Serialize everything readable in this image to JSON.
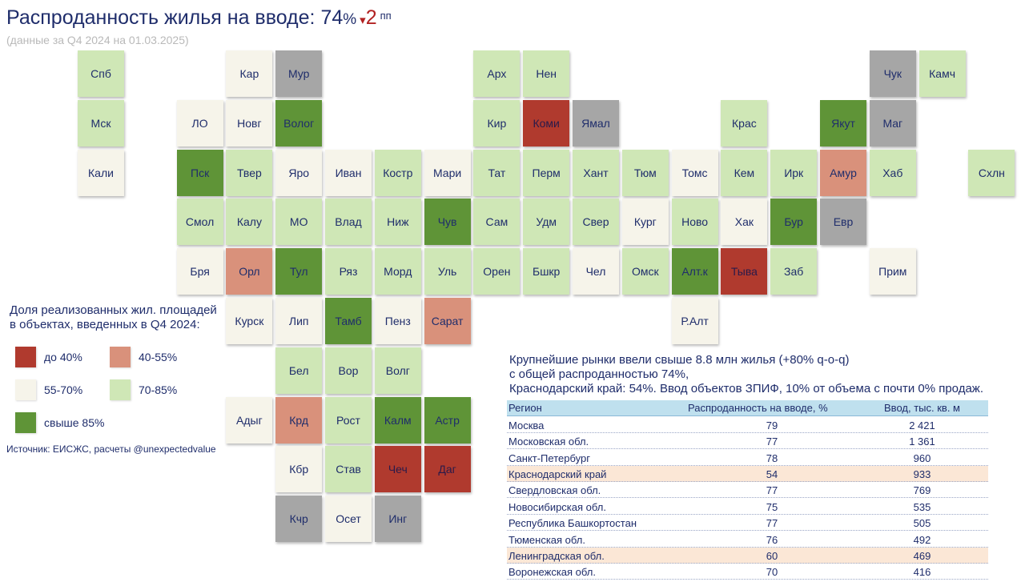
{
  "header": {
    "title_prefix": "Распроданность жилья на вводе: ",
    "title_value": "74",
    "title_value_suffix": "%",
    "change_arrow": "▾",
    "change_value": "2",
    "change_unit": "пп",
    "subtitle": "(данные за Q4 2024 на 01.03.2025)"
  },
  "colors": {
    "red": "#b03a2e",
    "salmon": "#d9917b",
    "cream": "#f6f4ea",
    "light_green": "#cfe7b6",
    "dark_green": "#5f9437",
    "grey": "#a6a6a6"
  },
  "legend": {
    "title_line1": "Доля реализованных жил. площадей",
    "title_line2": "в объектах, введенных в Q4 2024:",
    "items": [
      {
        "label": "до 40%",
        "color": "#b03a2e"
      },
      {
        "label": "40-55%",
        "color": "#d9917b"
      },
      {
        "label": "55-70%",
        "color": "#f6f4ea"
      },
      {
        "label": "70-85%",
        "color": "#cfe7b6"
      },
      {
        "label": "свыше 85%",
        "color": "#5f9437"
      }
    ]
  },
  "source": "Источник: ЕИСЖС, расчеты @unexpectedvalue",
  "note": {
    "line1": "Крупнейшие рынки ввели свыше 8.8 млн жилья (+80% q-o-q)",
    "line2": "с общей распроданностью 74%,",
    "line3": "Краснодарский край: 54%. Ввод объектов ЗПИФ, 10% от объема с почти 0% продаж."
  },
  "table": {
    "headers": [
      "Регион",
      "Распроданность на вводе, %",
      "Ввод, тыс. кв. м"
    ],
    "rows": [
      {
        "region": "Москва",
        "sold": "79",
        "area": "2 421",
        "highlight": false
      },
      {
        "region": "Московская обл.",
        "sold": "77",
        "area": "1 361",
        "highlight": false
      },
      {
        "region": "Санкт-Петербург",
        "sold": "78",
        "area": "960",
        "highlight": false
      },
      {
        "region": "Краснодарский край",
        "sold": "54",
        "area": "933",
        "highlight": true
      },
      {
        "region": "Свердловская обл.",
        "sold": "77",
        "area": "769",
        "highlight": false
      },
      {
        "region": "Новосибирская обл.",
        "sold": "75",
        "area": "535",
        "highlight": false
      },
      {
        "region": "Республика Башкортостан",
        "sold": "77",
        "area": "505",
        "highlight": false
      },
      {
        "region": "Тюменская обл.",
        "sold": "76",
        "area": "492",
        "highlight": false
      },
      {
        "region": "Ленинградская обл.",
        "sold": "60",
        "area": "469",
        "highlight": true
      },
      {
        "region": "Воронежская обл.",
        "sold": "70",
        "area": "416",
        "highlight": false
      }
    ]
  },
  "chart_data": {
    "type": "heatmap",
    "title": "Распроданность жилья на вводе: 74%",
    "bins": [
      "до 40%",
      "40-55%",
      "55-70%",
      "70-85%",
      "свыше 85%"
    ],
    "regions": [
      {
        "label": "Спб",
        "col": 0,
        "row": 0,
        "category": "light_green"
      },
      {
        "label": "Мск",
        "col": 0,
        "row": 1,
        "category": "light_green"
      },
      {
        "label": "Кали",
        "col": 0,
        "row": 2,
        "category": "cream"
      },
      {
        "label": "Кар",
        "col": 3,
        "row": 0,
        "category": "cream"
      },
      {
        "label": "Мур",
        "col": 4,
        "row": 0,
        "category": "grey"
      },
      {
        "label": "Арх",
        "col": 8,
        "row": 0,
        "category": "light_green"
      },
      {
        "label": "Нен",
        "col": 9,
        "row": 0,
        "category": "light_green"
      },
      {
        "label": "Чук",
        "col": 16,
        "row": 0,
        "category": "grey"
      },
      {
        "label": "Камч",
        "col": 17,
        "row": 0,
        "category": "light_green"
      },
      {
        "label": "ЛО",
        "col": 2,
        "row": 1,
        "category": "cream"
      },
      {
        "label": "Новг",
        "col": 3,
        "row": 1,
        "category": "cream"
      },
      {
        "label": "Волог",
        "col": 4,
        "row": 1,
        "category": "dark_green"
      },
      {
        "label": "Кир",
        "col": 8,
        "row": 1,
        "category": "light_green"
      },
      {
        "label": "Коми",
        "col": 9,
        "row": 1,
        "category": "red"
      },
      {
        "label": "Ямал",
        "col": 10,
        "row": 1,
        "category": "grey"
      },
      {
        "label": "Крас",
        "col": 13,
        "row": 1,
        "category": "light_green"
      },
      {
        "label": "Якут",
        "col": 15,
        "row": 1,
        "category": "dark_green"
      },
      {
        "label": "Маг",
        "col": 16,
        "row": 1,
        "category": "grey"
      },
      {
        "label": "Пск",
        "col": 2,
        "row": 2,
        "category": "dark_green"
      },
      {
        "label": "Твер",
        "col": 3,
        "row": 2,
        "category": "light_green"
      },
      {
        "label": "Яро",
        "col": 4,
        "row": 2,
        "category": "cream"
      },
      {
        "label": "Иван",
        "col": 5,
        "row": 2,
        "category": "cream"
      },
      {
        "label": "Костр",
        "col": 6,
        "row": 2,
        "category": "light_green"
      },
      {
        "label": "Мари",
        "col": 7,
        "row": 2,
        "category": "cream"
      },
      {
        "label": "Тат",
        "col": 8,
        "row": 2,
        "category": "light_green"
      },
      {
        "label": "Перм",
        "col": 9,
        "row": 2,
        "category": "light_green"
      },
      {
        "label": "Хант",
        "col": 10,
        "row": 2,
        "category": "light_green"
      },
      {
        "label": "Тюм",
        "col": 11,
        "row": 2,
        "category": "light_green"
      },
      {
        "label": "Томс",
        "col": 12,
        "row": 2,
        "category": "cream"
      },
      {
        "label": "Кем",
        "col": 13,
        "row": 2,
        "category": "light_green"
      },
      {
        "label": "Ирк",
        "col": 14,
        "row": 2,
        "category": "light_green"
      },
      {
        "label": "Амур",
        "col": 15,
        "row": 2,
        "category": "salmon"
      },
      {
        "label": "Хаб",
        "col": 16,
        "row": 2,
        "category": "light_green"
      },
      {
        "label": "Схлн",
        "col": 18,
        "row": 2,
        "category": "light_green"
      },
      {
        "label": "Смол",
        "col": 2,
        "row": 3,
        "category": "light_green"
      },
      {
        "label": "Калу",
        "col": 3,
        "row": 3,
        "category": "light_green"
      },
      {
        "label": "МО",
        "col": 4,
        "row": 3,
        "category": "light_green"
      },
      {
        "label": "Влад",
        "col": 5,
        "row": 3,
        "category": "light_green"
      },
      {
        "label": "Ниж",
        "col": 6,
        "row": 3,
        "category": "light_green"
      },
      {
        "label": "Чув",
        "col": 7,
        "row": 3,
        "category": "dark_green"
      },
      {
        "label": "Сам",
        "col": 8,
        "row": 3,
        "category": "light_green"
      },
      {
        "label": "Удм",
        "col": 9,
        "row": 3,
        "category": "light_green"
      },
      {
        "label": "Свер",
        "col": 10,
        "row": 3,
        "category": "light_green"
      },
      {
        "label": "Кург",
        "col": 11,
        "row": 3,
        "category": "cream"
      },
      {
        "label": "Ново",
        "col": 12,
        "row": 3,
        "category": "light_green"
      },
      {
        "label": "Хак",
        "col": 13,
        "row": 3,
        "category": "cream"
      },
      {
        "label": "Бур",
        "col": 14,
        "row": 3,
        "category": "dark_green"
      },
      {
        "label": "Евр",
        "col": 15,
        "row": 3,
        "category": "grey"
      },
      {
        "label": "Бря",
        "col": 2,
        "row": 4,
        "category": "cream"
      },
      {
        "label": "Орл",
        "col": 3,
        "row": 4,
        "category": "salmon"
      },
      {
        "label": "Тул",
        "col": 4,
        "row": 4,
        "category": "dark_green"
      },
      {
        "label": "Ряз",
        "col": 5,
        "row": 4,
        "category": "light_green"
      },
      {
        "label": "Морд",
        "col": 6,
        "row": 4,
        "category": "light_green"
      },
      {
        "label": "Уль",
        "col": 7,
        "row": 4,
        "category": "light_green"
      },
      {
        "label": "Орен",
        "col": 8,
        "row": 4,
        "category": "light_green"
      },
      {
        "label": "Бшкр",
        "col": 9,
        "row": 4,
        "category": "light_green"
      },
      {
        "label": "Чел",
        "col": 10,
        "row": 4,
        "category": "cream"
      },
      {
        "label": "Омск",
        "col": 11,
        "row": 4,
        "category": "light_green"
      },
      {
        "label": "Алт.к",
        "col": 12,
        "row": 4,
        "category": "dark_green"
      },
      {
        "label": "Тыва",
        "col": 13,
        "row": 4,
        "category": "red"
      },
      {
        "label": "Заб",
        "col": 14,
        "row": 4,
        "category": "light_green"
      },
      {
        "label": "Прим",
        "col": 16,
        "row": 4,
        "category": "cream"
      },
      {
        "label": "Курск",
        "col": 3,
        "row": 5,
        "category": "cream"
      },
      {
        "label": "Лип",
        "col": 4,
        "row": 5,
        "category": "cream"
      },
      {
        "label": "Тамб",
        "col": 5,
        "row": 5,
        "category": "dark_green"
      },
      {
        "label": "Пенз",
        "col": 6,
        "row": 5,
        "category": "cream"
      },
      {
        "label": "Сарат",
        "col": 7,
        "row": 5,
        "category": "salmon"
      },
      {
        "label": "Р.Алт",
        "col": 12,
        "row": 5,
        "category": "cream"
      },
      {
        "label": "Бел",
        "col": 4,
        "row": 6,
        "category": "light_green"
      },
      {
        "label": "Вор",
        "col": 5,
        "row": 6,
        "category": "light_green"
      },
      {
        "label": "Волг",
        "col": 6,
        "row": 6,
        "category": "light_green"
      },
      {
        "label": "Адыг",
        "col": 3,
        "row": 7,
        "category": "cream"
      },
      {
        "label": "Крд",
        "col": 4,
        "row": 7,
        "category": "salmon"
      },
      {
        "label": "Рост",
        "col": 5,
        "row": 7,
        "category": "light_green"
      },
      {
        "label": "Калм",
        "col": 6,
        "row": 7,
        "category": "dark_green"
      },
      {
        "label": "Астр",
        "col": 7,
        "row": 7,
        "category": "dark_green"
      },
      {
        "label": "Кбр",
        "col": 4,
        "row": 8,
        "category": "cream"
      },
      {
        "label": "Став",
        "col": 5,
        "row": 8,
        "category": "light_green"
      },
      {
        "label": "Чеч",
        "col": 6,
        "row": 8,
        "category": "red"
      },
      {
        "label": "Даг",
        "col": 7,
        "row": 8,
        "category": "red"
      },
      {
        "label": "Кчр",
        "col": 4,
        "row": 9,
        "category": "grey"
      },
      {
        "label": "Осет",
        "col": 5,
        "row": 9,
        "category": "cream"
      },
      {
        "label": "Инг",
        "col": 6,
        "row": 9,
        "category": "grey"
      }
    ]
  }
}
